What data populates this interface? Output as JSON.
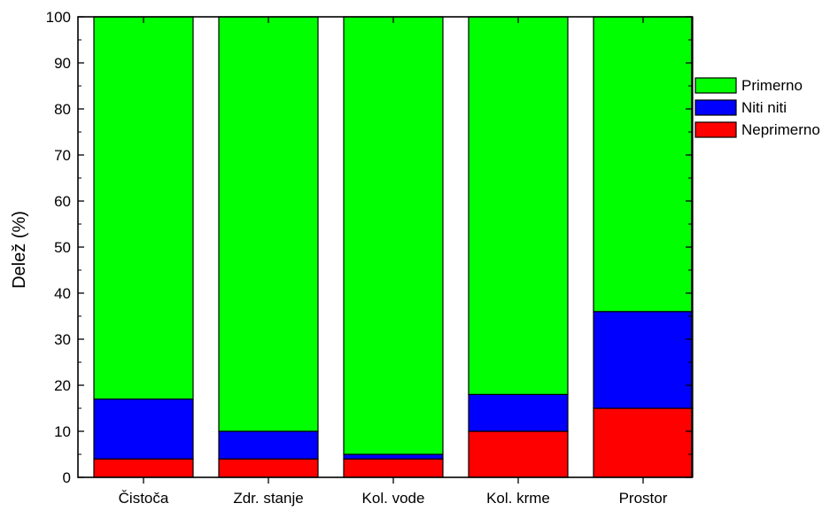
{
  "chart_data": {
    "type": "bar",
    "stacked": true,
    "title": "",
    "xlabel": "",
    "ylabel": "Delež (%)",
    "ylim": [
      0,
      100
    ],
    "yticks": [
      0,
      10,
      20,
      30,
      40,
      50,
      60,
      70,
      80,
      90,
      100
    ],
    "categories": [
      "Čistoča",
      "Zdr. stanje",
      "Kol. vode",
      "Kol. krme",
      "Prostor"
    ],
    "series": [
      {
        "name": "Neprimerno",
        "color": "#ff0000",
        "values": [
          4,
          4,
          4,
          10,
          15
        ]
      },
      {
        "name": "Niti niti",
        "color": "#0000ff",
        "values": [
          13,
          6,
          1,
          8,
          21
        ]
      },
      {
        "name": "Primerno",
        "color": "#00ff00",
        "values": [
          83,
          90,
          95,
          82,
          64
        ]
      }
    ],
    "legend": {
      "position": "right",
      "order": [
        "Primerno",
        "Niti niti",
        "Neprimerno"
      ]
    },
    "grid": false
  }
}
